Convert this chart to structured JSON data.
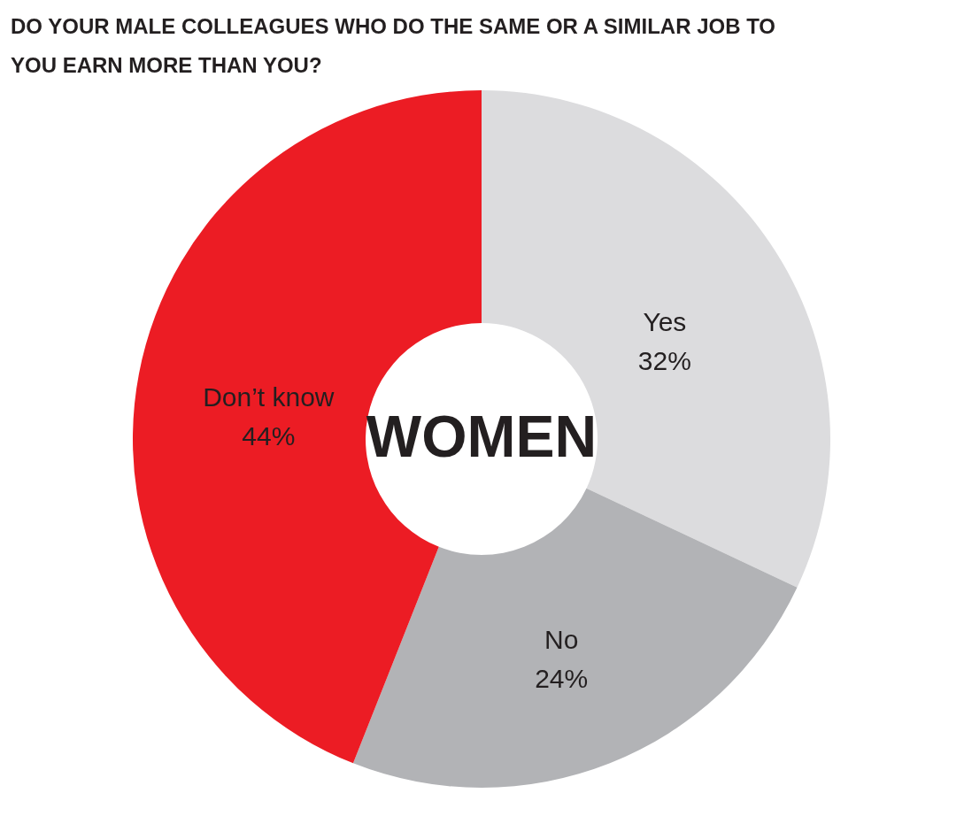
{
  "chart_data": {
    "type": "donut",
    "title": "DO YOUR MALE COLLEAGUES WHO DO THE SAME OR A SIMILAR JOB TO YOU EARN MORE THAN YOU?",
    "categories": [
      "Yes",
      "No",
      "Don’t know"
    ],
    "values": [
      32,
      24,
      44
    ],
    "value_labels": [
      "32%",
      "24%",
      "44%"
    ],
    "colors": [
      "#dcdcde",
      "#b2b3b6",
      "#ec1c24"
    ],
    "annotations": [
      "WOMEN"
    ]
  }
}
